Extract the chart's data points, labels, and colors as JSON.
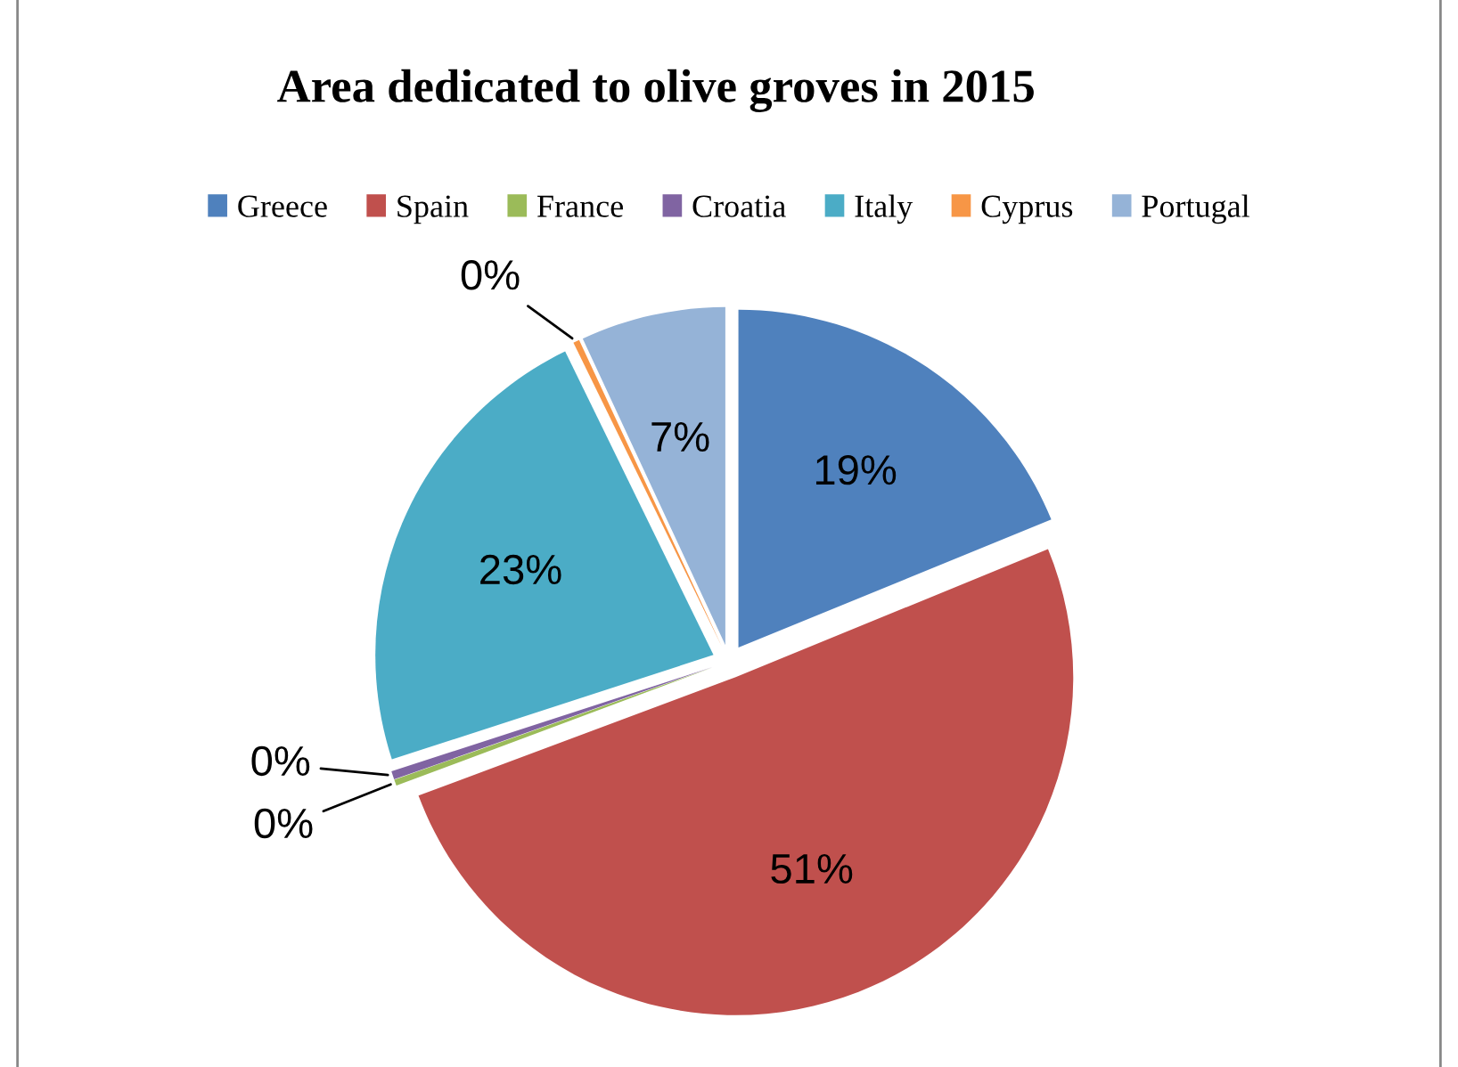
{
  "chart_data": {
    "type": "pie",
    "title": "Area dedicated to olive groves in 2015",
    "categories": [
      "Greece",
      "Spain",
      "France",
      "Croatia",
      "Italy",
      "Cyprus",
      "Portugal"
    ],
    "values": [
      19,
      51,
      0.3,
      0.4,
      23,
      0.3,
      7
    ],
    "value_labels": [
      "19%",
      "51%",
      "0%",
      "0%",
      "23%",
      "0%",
      "7%"
    ],
    "colors": [
      "#4f81bd",
      "#c0504d",
      "#9bbb59",
      "#8064a2",
      "#4bacc6",
      "#f79646",
      "#95b3d7"
    ],
    "legend": "top"
  }
}
